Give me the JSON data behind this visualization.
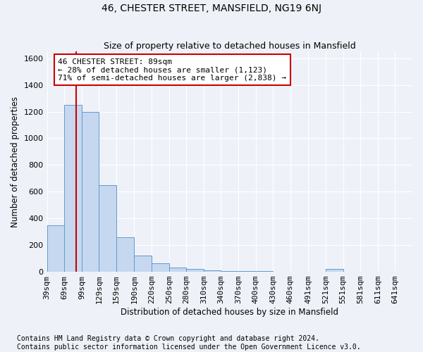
{
  "title": "46, CHESTER STREET, MANSFIELD, NG19 6NJ",
  "subtitle": "Size of property relative to detached houses in Mansfield",
  "xlabel": "Distribution of detached houses by size in Mansfield",
  "ylabel": "Number of detached properties",
  "footnote1": "Contains HM Land Registry data © Crown copyright and database right 2024.",
  "footnote2": "Contains public sector information licensed under the Open Government Licence v3.0.",
  "bin_edges": [
    39,
    69,
    99,
    129,
    159,
    190,
    220,
    250,
    280,
    310,
    340,
    370,
    400,
    430,
    460,
    491,
    521,
    551,
    581,
    611,
    641
  ],
  "bar_heights": [
    350,
    1250,
    1200,
    650,
    260,
    120,
    65,
    30,
    20,
    10,
    8,
    5,
    5,
    3,
    3,
    3,
    20,
    3,
    3,
    3,
    3
  ],
  "bar_color": "#c5d8f0",
  "bar_edge_color": "#6699cc",
  "property_size": 89,
  "red_line_color": "#cc0000",
  "annotation_line1": "46 CHESTER STREET: 89sqm",
  "annotation_line2": "← 28% of detached houses are smaller (1,123)",
  "annotation_line3": "71% of semi-detached houses are larger (2,838) →",
  "annotation_box_color": "#ffffff",
  "annotation_box_edge": "#cc0000",
  "ylim": [
    0,
    1650
  ],
  "xlim_left": 39,
  "xlim_right": 671,
  "yticks": [
    0,
    200,
    400,
    600,
    800,
    1000,
    1200,
    1400,
    1600
  ],
  "background_color": "#eef2f8",
  "grid_color": "#ffffff",
  "title_fontsize": 10,
  "subtitle_fontsize": 9,
  "axis_label_fontsize": 8.5,
  "tick_fontsize": 8,
  "annotation_fontsize": 8,
  "footnote_fontsize": 7
}
